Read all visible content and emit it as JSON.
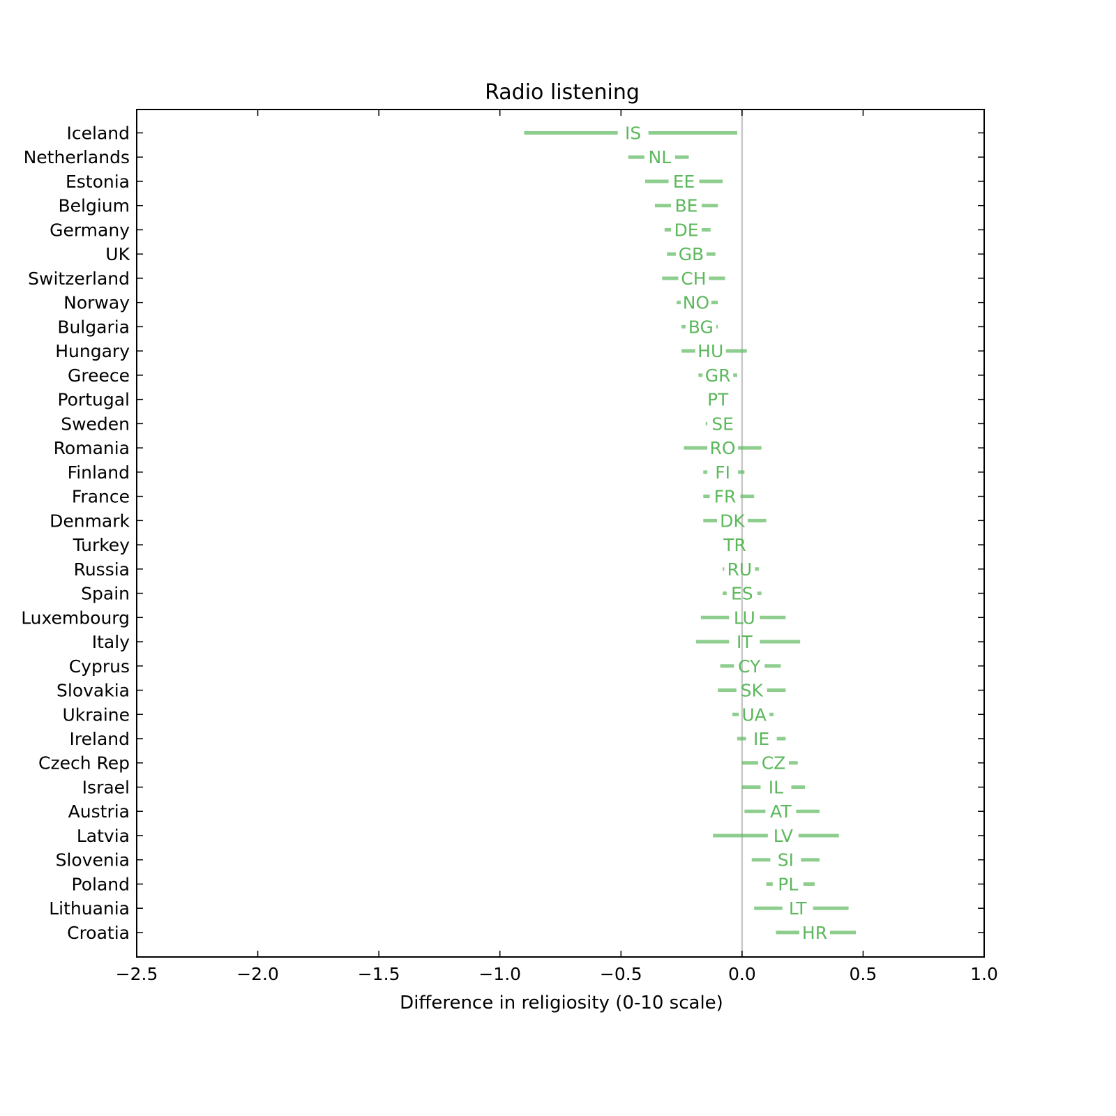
{
  "chart_data": {
    "type": "interval",
    "title": "Radio listening",
    "xlabel": "Difference in religiosity (0-10 scale)",
    "ylabel": "",
    "xlim": [
      -2.5,
      1.0
    ],
    "xticks": [
      -2.5,
      -2.0,
      -1.5,
      -1.0,
      -0.5,
      0.0,
      0.5,
      1.0
    ],
    "xtick_labels": [
      "−2.5",
      "−2.0",
      "−1.5",
      "−1.0",
      "−0.5",
      "0.0",
      "0.5",
      "1.0"
    ],
    "reference_line_x": 0.0,
    "grid": false,
    "color": "#5cb85c",
    "reference_color": "#c8c8c8",
    "rows": [
      {
        "country": "Iceland",
        "code": "IS",
        "low": -0.9,
        "mid": -0.45,
        "high": -0.02
      },
      {
        "country": "Netherlands",
        "code": "NL",
        "low": -0.47,
        "mid": -0.34,
        "high": -0.22
      },
      {
        "country": "Estonia",
        "code": "EE",
        "low": -0.4,
        "mid": -0.24,
        "high": -0.08
      },
      {
        "country": "Belgium",
        "code": "BE",
        "low": -0.36,
        "mid": -0.23,
        "high": -0.1
      },
      {
        "country": "Germany",
        "code": "DE",
        "low": -0.32,
        "mid": -0.23,
        "high": -0.13
      },
      {
        "country": "UK",
        "code": "GB",
        "low": -0.31,
        "mid": -0.21,
        "high": -0.11
      },
      {
        "country": "Switzerland",
        "code": "CH",
        "low": -0.33,
        "mid": -0.2,
        "high": -0.07
      },
      {
        "country": "Norway",
        "code": "NO",
        "low": -0.27,
        "mid": -0.19,
        "high": -0.1
      },
      {
        "country": "Bulgaria",
        "code": "BG",
        "low": -0.25,
        "mid": -0.17,
        "high": -0.1
      },
      {
        "country": "Hungary",
        "code": "HU",
        "low": -0.25,
        "mid": -0.13,
        "high": 0.02
      },
      {
        "country": "Greece",
        "code": "GR",
        "low": -0.18,
        "mid": -0.1,
        "high": -0.02
      },
      {
        "country": "Portugal",
        "code": "PT",
        "low": -0.15,
        "mid": -0.1,
        "high": -0.04
      },
      {
        "country": "Sweden",
        "code": "SE",
        "low": -0.15,
        "mid": -0.08,
        "high": -0.02
      },
      {
        "country": "Romania",
        "code": "RO",
        "low": -0.24,
        "mid": -0.08,
        "high": 0.08
      },
      {
        "country": "Finland",
        "code": "FI",
        "low": -0.16,
        "mid": -0.08,
        "high": 0.01
      },
      {
        "country": "France",
        "code": "FR",
        "low": -0.16,
        "mid": -0.07,
        "high": 0.05
      },
      {
        "country": "Denmark",
        "code": "DK",
        "low": -0.16,
        "mid": -0.04,
        "high": 0.1
      },
      {
        "country": "Turkey",
        "code": "TR",
        "low": -0.08,
        "mid": -0.03,
        "high": 0.02
      },
      {
        "country": "Russia",
        "code": "RU",
        "low": -0.08,
        "mid": -0.01,
        "high": 0.07
      },
      {
        "country": "Spain",
        "code": "ES",
        "low": -0.08,
        "mid": 0.0,
        "high": 0.08
      },
      {
        "country": "Luxembourg",
        "code": "LU",
        "low": -0.17,
        "mid": 0.01,
        "high": 0.18
      },
      {
        "country": "Italy",
        "code": "IT",
        "low": -0.19,
        "mid": 0.01,
        "high": 0.24
      },
      {
        "country": "Cyprus",
        "code": "CY",
        "low": -0.09,
        "mid": 0.03,
        "high": 0.16
      },
      {
        "country": "Slovakia",
        "code": "SK",
        "low": -0.1,
        "mid": 0.04,
        "high": 0.18
      },
      {
        "country": "Ukraine",
        "code": "UA",
        "low": -0.04,
        "mid": 0.05,
        "high": 0.13
      },
      {
        "country": "Ireland",
        "code": "IE",
        "low": -0.02,
        "mid": 0.08,
        "high": 0.18
      },
      {
        "country": "Czech Rep",
        "code": "CZ",
        "low": 0.0,
        "mid": 0.13,
        "high": 0.23
      },
      {
        "country": "Israel",
        "code": "IL",
        "low": 0.0,
        "mid": 0.14,
        "high": 0.26
      },
      {
        "country": "Austria",
        "code": "AT",
        "low": 0.01,
        "mid": 0.16,
        "high": 0.32
      },
      {
        "country": "Latvia",
        "code": "LV",
        "low": -0.12,
        "mid": 0.17,
        "high": 0.4
      },
      {
        "country": "Slovenia",
        "code": "SI",
        "low": 0.04,
        "mid": 0.18,
        "high": 0.32
      },
      {
        "country": "Poland",
        "code": "PL",
        "low": 0.1,
        "mid": 0.19,
        "high": 0.3
      },
      {
        "country": "Lithuania",
        "code": "LT",
        "low": 0.05,
        "mid": 0.23,
        "high": 0.44
      },
      {
        "country": "Croatia",
        "code": "HR",
        "low": 0.14,
        "mid": 0.3,
        "high": 0.47
      }
    ]
  }
}
